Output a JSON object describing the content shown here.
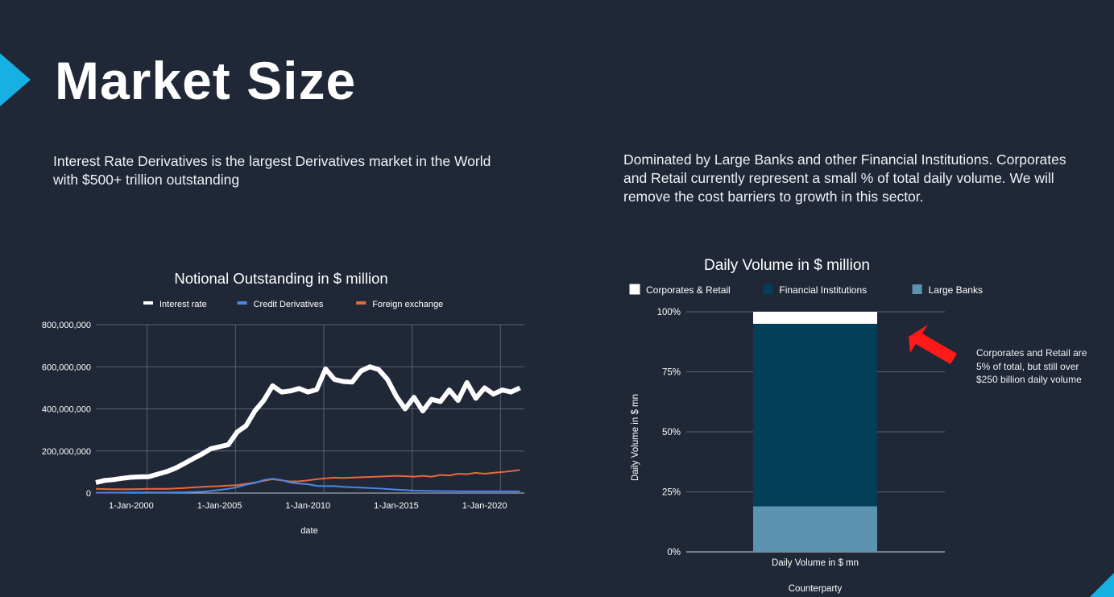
{
  "title": "Market Size",
  "left_description": "Interest Rate Derivatives is the largest Derivatives market in the World with $500+ trillion outstanding",
  "right_description": "Dominated by Large Banks and other Financial Institutions. Corporates and Retail currently represent a small % of total daily volume. We will remove the cost barriers to growth in this sector.",
  "annotation_note": "Corporates and  Retail are 5% of total, but still over $250 billion daily volume",
  "colors": {
    "background": "#202736",
    "accent": "#16b0e2",
    "interest_rate": "#ffffff",
    "credit_derivatives": "#4a86e8",
    "foreign_exchange": "#e8683b",
    "corporates_retail": "#ffffff",
    "financial_institutions": "#043f5a",
    "large_banks": "#5c93b1",
    "arrow": "#ff1a1a"
  },
  "chart_data": [
    {
      "type": "line",
      "title": "Notional Outstanding in $ million",
      "xlabel": "date",
      "ylabel": "",
      "xlim": [
        1998.0,
        2022.25
      ],
      "ylim": [
        0,
        800000000
      ],
      "y_ticks": [
        {
          "value": 0,
          "label": "0"
        },
        {
          "value": 200000000,
          "label": "200,000,000"
        },
        {
          "value": 400000000,
          "label": "400,000,000"
        },
        {
          "value": 600000000,
          "label": "600,000,000"
        },
        {
          "value": 800000000,
          "label": "800,000,000"
        }
      ],
      "x_ticks": [
        {
          "value": 2000,
          "label": "1-Jan-2000"
        },
        {
          "value": 2005,
          "label": "1-Jan-2005"
        },
        {
          "value": 2010,
          "label": "1-Jan-2010"
        },
        {
          "value": 2015,
          "label": "1-Jan-2015"
        },
        {
          "value": 2020,
          "label": "1-Jan-2020"
        }
      ],
      "legend_position": "top",
      "series": [
        {
          "name": "Interest rate",
          "color": "#ffffff",
          "width": 6,
          "x": [
            1998.0,
            1998.5,
            1999.0,
            1999.5,
            2000.0,
            2000.5,
            2001.0,
            2001.5,
            2002.0,
            2002.5,
            2003.0,
            2003.5,
            2004.0,
            2004.5,
            2005.0,
            2005.5,
            2006.0,
            2006.5,
            2007.0,
            2007.5,
            2008.0,
            2008.5,
            2009.0,
            2009.5,
            2010.0,
            2010.5,
            2011.0,
            2011.5,
            2012.0,
            2012.5,
            2013.0,
            2013.5,
            2014.0,
            2014.5,
            2015.0,
            2015.5,
            2016.0,
            2016.5,
            2017.0,
            2017.5,
            2018.0,
            2018.5,
            2019.0,
            2019.5,
            2020.0,
            2020.5,
            2021.0,
            2021.5,
            2022.0
          ],
          "values": [
            50000000,
            60000000,
            64000000,
            70000000,
            75000000,
            77000000,
            78000000,
            90000000,
            102000000,
            118000000,
            140000000,
            163000000,
            185000000,
            210000000,
            220000000,
            230000000,
            290000000,
            320000000,
            390000000,
            440000000,
            510000000,
            480000000,
            485000000,
            497000000,
            480000000,
            492000000,
            590000000,
            540000000,
            530000000,
            527000000,
            580000000,
            600000000,
            587000000,
            540000000,
            460000000,
            400000000,
            455000000,
            390000000,
            445000000,
            435000000,
            490000000,
            440000000,
            525000000,
            450000000,
            500000000,
            470000000,
            490000000,
            480000000,
            500000000
          ]
        },
        {
          "name": "Credit Derivatives",
          "color": "#4a86e8",
          "width": 2,
          "x": [
            1998.0,
            1999.0,
            2000.0,
            2001.0,
            2002.0,
            2003.0,
            2004.0,
            2004.5,
            2005.0,
            2005.5,
            2006.0,
            2006.5,
            2007.0,
            2007.5,
            2008.0,
            2008.5,
            2009.0,
            2009.5,
            2010.0,
            2010.5,
            2011.0,
            2011.5,
            2012.0,
            2013.0,
            2014.0,
            2015.0,
            2016.0,
            2017.0,
            2018.0,
            2019.0,
            2020.0,
            2021.0,
            2022.0
          ],
          "values": [
            2000000,
            2000000,
            3000000,
            3000000,
            3000000,
            4000000,
            6000000,
            10000000,
            15000000,
            20000000,
            28000000,
            40000000,
            48000000,
            62000000,
            68000000,
            62000000,
            50000000,
            45000000,
            42000000,
            34000000,
            33000000,
            33000000,
            30000000,
            26000000,
            22000000,
            16000000,
            12000000,
            10000000,
            9000000,
            8000000,
            8000000,
            8000000,
            8000000
          ]
        },
        {
          "name": "Foreign exchange",
          "color": "#e8683b",
          "width": 2,
          "x": [
            1998.0,
            1999.0,
            2000.0,
            2001.0,
            2002.0,
            2003.0,
            2004.0,
            2005.0,
            2006.0,
            2007.0,
            2007.5,
            2008.0,
            2008.5,
            2009.0,
            2009.5,
            2010.0,
            2010.5,
            2011.0,
            2011.5,
            2012.0,
            2013.0,
            2014.0,
            2015.0,
            2016.0,
            2016.5,
            2017.0,
            2017.5,
            2018.0,
            2018.5,
            2019.0,
            2019.5,
            2020.0,
            2020.5,
            2021.0,
            2021.5,
            2022.0
          ],
          "values": [
            20000000,
            18000000,
            18000000,
            20000000,
            20000000,
            24000000,
            30000000,
            33000000,
            38000000,
            50000000,
            58000000,
            66000000,
            60000000,
            55000000,
            56000000,
            60000000,
            66000000,
            70000000,
            73000000,
            72000000,
            75000000,
            78000000,
            82000000,
            78000000,
            82000000,
            78000000,
            86000000,
            84000000,
            92000000,
            90000000,
            96000000,
            92000000,
            96000000,
            100000000,
            104000000,
            110000000
          ]
        }
      ]
    },
    {
      "type": "bar",
      "stacked": "percent",
      "title": "Daily Volume in $ million",
      "xlabel": "Counterparty",
      "ylabel": "Daily Volume in $ mn",
      "categories": [
        "Daily Volume in $ mn"
      ],
      "ylim": [
        0,
        100
      ],
      "y_ticks": [
        {
          "value": 0,
          "label": "0%"
        },
        {
          "value": 25,
          "label": "25%"
        },
        {
          "value": 50,
          "label": "50%"
        },
        {
          "value": 75,
          "label": "75%"
        },
        {
          "value": 100,
          "label": "100%"
        }
      ],
      "legend_position": "top",
      "series": [
        {
          "name": "Corporates & Retail",
          "color": "#ffffff",
          "values": [
            5
          ]
        },
        {
          "name": "Financial Institutions",
          "color": "#043f5a",
          "values": [
            76
          ]
        },
        {
          "name": "Large Banks",
          "color": "#5c93b1",
          "values": [
            19
          ]
        }
      ]
    }
  ]
}
